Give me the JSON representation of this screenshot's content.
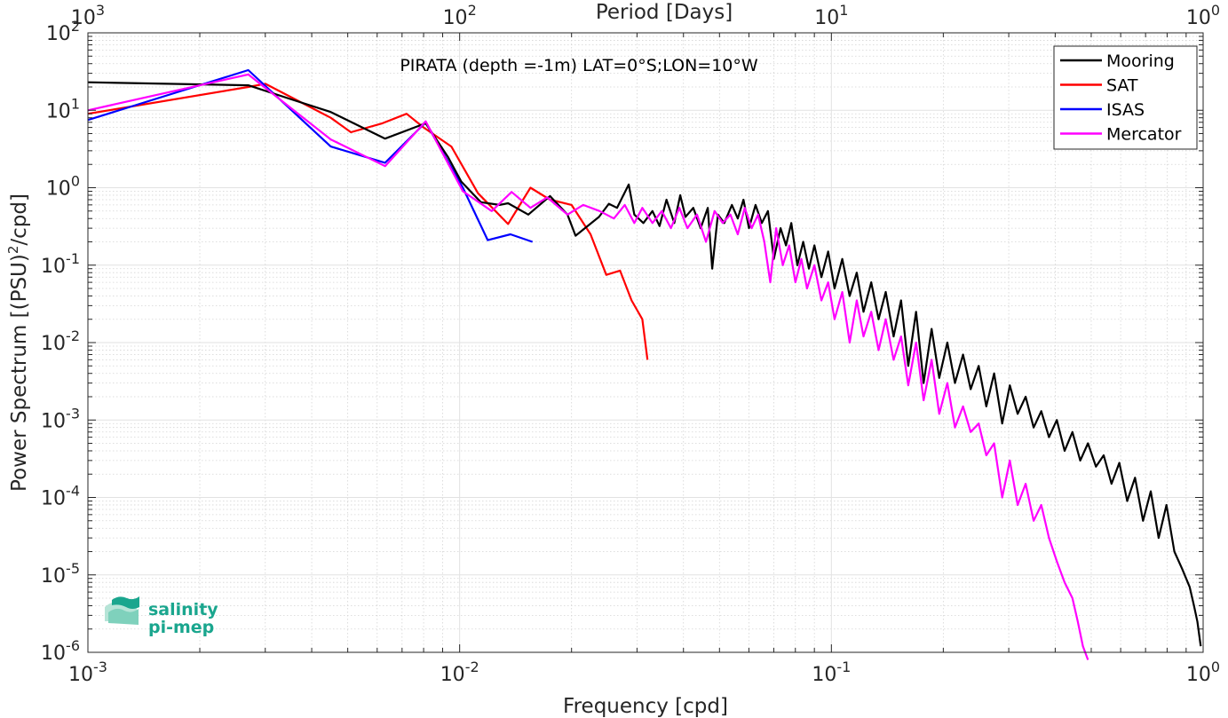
{
  "chart_data": {
    "type": "line",
    "title": "PIRATA (depth =-1m) LAT=0°S;LON=10°W",
    "xlabel": "Frequency [cpd]",
    "ylabel": "Power Spectrum [(PSU)^2/cpd]",
    "ylabel_base": "Power Spectrum [(PSU)",
    "ylabel_sup": "2",
    "ylabel_tail": "/cpd]",
    "x2label": "Period [Days]",
    "xscale": "log",
    "yscale": "log",
    "xlim": [
      0.001,
      1
    ],
    "ylim": [
      1e-06,
      100
    ],
    "grid": true,
    "legend_position": "top-right",
    "x_ticks": [
      {
        "value": 0.001,
        "base": "10",
        "exp": "-3"
      },
      {
        "value": 0.01,
        "base": "10",
        "exp": "-2"
      },
      {
        "value": 0.1,
        "base": "10",
        "exp": "-1"
      },
      {
        "value": 1,
        "base": "10",
        "exp": "0"
      }
    ],
    "x2_ticks": [
      {
        "value": 1000,
        "base": "10",
        "exp": "3"
      },
      {
        "value": 100,
        "base": "10",
        "exp": "2"
      },
      {
        "value": 10,
        "base": "10",
        "exp": "1"
      },
      {
        "value": 1,
        "base": "10",
        "exp": "0"
      }
    ],
    "y_ticks": [
      {
        "value": 100,
        "base": "10",
        "exp": "2"
      },
      {
        "value": 10,
        "base": "10",
        "exp": "1"
      },
      {
        "value": 1,
        "base": "10",
        "exp": "0"
      },
      {
        "value": 0.1,
        "base": "10",
        "exp": "-1"
      },
      {
        "value": 0.01,
        "base": "10",
        "exp": "-2"
      },
      {
        "value": 0.001,
        "base": "10",
        "exp": "-3"
      },
      {
        "value": 0.0001,
        "base": "10",
        "exp": "-4"
      },
      {
        "value": 1e-05,
        "base": "10",
        "exp": "-5"
      },
      {
        "value": 1e-06,
        "base": "10",
        "exp": "-6"
      }
    ],
    "series": [
      {
        "name": "Mooring",
        "color": "#000000",
        "x": [
          0.001,
          0.0027,
          0.0035,
          0.0045,
          0.0063,
          0.0081,
          0.0093,
          0.0101,
          0.0114,
          0.0128,
          0.0135,
          0.0153,
          0.0175,
          0.0195,
          0.0205,
          0.0237,
          0.0252,
          0.0265,
          0.0285,
          0.0295,
          0.0312,
          0.033,
          0.0345,
          0.036,
          0.0378,
          0.0392,
          0.0405,
          0.0425,
          0.0445,
          0.0465,
          0.0478,
          0.0495,
          0.0515,
          0.054,
          0.056,
          0.058,
          0.06,
          0.0625,
          0.065,
          0.0675,
          0.07,
          0.073,
          0.0755,
          0.078,
          0.081,
          0.084,
          0.087,
          0.09,
          0.094,
          0.098,
          0.102,
          0.107,
          0.112,
          0.117,
          0.122,
          0.128,
          0.134,
          0.14,
          0.147,
          0.154,
          0.161,
          0.169,
          0.177,
          0.186,
          0.195,
          0.205,
          0.215,
          0.226,
          0.237,
          0.249,
          0.261,
          0.274,
          0.288,
          0.302,
          0.317,
          0.333,
          0.35,
          0.367,
          0.385,
          0.404,
          0.424,
          0.445,
          0.467,
          0.49,
          0.515,
          0.54,
          0.567,
          0.595,
          0.625,
          0.656,
          0.689,
          0.723,
          0.759,
          0.797,
          0.837,
          0.878,
          0.92,
          0.945,
          0.965,
          0.985
        ],
        "values": [
          23,
          21,
          14,
          9.5,
          4.3,
          6.8,
          2.5,
          1.2,
          0.65,
          0.6,
          0.63,
          0.45,
          0.78,
          0.45,
          0.24,
          0.42,
          0.62,
          0.55,
          1.1,
          0.45,
          0.35,
          0.5,
          0.32,
          0.7,
          0.35,
          0.8,
          0.42,
          0.55,
          0.3,
          0.55,
          0.09,
          0.45,
          0.35,
          0.6,
          0.4,
          0.7,
          0.3,
          0.6,
          0.35,
          0.5,
          0.12,
          0.3,
          0.18,
          0.35,
          0.1,
          0.2,
          0.09,
          0.18,
          0.07,
          0.15,
          0.05,
          0.12,
          0.04,
          0.08,
          0.025,
          0.06,
          0.02,
          0.045,
          0.012,
          0.035,
          0.005,
          0.025,
          0.003,
          0.015,
          0.0035,
          0.01,
          0.003,
          0.007,
          0.0025,
          0.005,
          0.0015,
          0.004,
          0.0009,
          0.0028,
          0.0012,
          0.002,
          0.0008,
          0.0013,
          0.0006,
          0.001,
          0.0004,
          0.0007,
          0.0003,
          0.0005,
          0.00025,
          0.00035,
          0.00015,
          0.00028,
          9e-05,
          0.00018,
          5e-05,
          0.00012,
          3e-05,
          8e-05,
          2e-05,
          1.2e-05,
          7e-06,
          4e-06,
          2.5e-06,
          1.2e-06
        ]
      },
      {
        "name": "SAT",
        "color": "#ff0000",
        "x": [
          0.001,
          0.0027,
          0.003,
          0.0045,
          0.0051,
          0.0062,
          0.0072,
          0.008,
          0.0095,
          0.0112,
          0.0135,
          0.0155,
          0.0175,
          0.02,
          0.0225,
          0.0248,
          0.027,
          0.029,
          0.031,
          0.032
        ],
        "values": [
          9,
          20,
          22,
          8,
          5.2,
          6.8,
          9,
          6,
          3.4,
          0.85,
          0.34,
          1.0,
          0.7,
          0.6,
          0.25,
          0.075,
          0.085,
          0.035,
          0.02,
          0.006
        ]
      },
      {
        "name": "ISAS",
        "color": "#0000ff",
        "x": [
          0.001,
          0.0027,
          0.0045,
          0.0063,
          0.0081,
          0.0102,
          0.0119,
          0.0137,
          0.0157
        ],
        "values": [
          7.5,
          33,
          3.4,
          2.1,
          7,
          1.0,
          0.21,
          0.25,
          0.2
        ]
      },
      {
        "name": "Mercator",
        "color": "#ff00ff",
        "x": [
          0.001,
          0.0027,
          0.0045,
          0.0063,
          0.0081,
          0.0102,
          0.0122,
          0.0138,
          0.0155,
          0.0172,
          0.0195,
          0.0215,
          0.0238,
          0.026,
          0.0278,
          0.0295,
          0.031,
          0.033,
          0.035,
          0.037,
          0.039,
          0.041,
          0.0435,
          0.046,
          0.0485,
          0.051,
          0.0535,
          0.056,
          0.0585,
          0.061,
          0.0635,
          0.066,
          0.0685,
          0.071,
          0.074,
          0.077,
          0.08,
          0.083,
          0.086,
          0.09,
          0.094,
          0.098,
          0.102,
          0.107,
          0.112,
          0.117,
          0.122,
          0.128,
          0.134,
          0.14,
          0.147,
          0.154,
          0.161,
          0.169,
          0.177,
          0.186,
          0.195,
          0.205,
          0.215,
          0.226,
          0.237,
          0.249,
          0.261,
          0.274,
          0.288,
          0.302,
          0.317,
          0.333,
          0.35,
          0.367,
          0.385,
          0.404,
          0.424,
          0.445,
          0.46,
          0.475,
          0.49
        ],
        "values": [
          10,
          29,
          4.2,
          1.9,
          7.2,
          0.9,
          0.5,
          0.88,
          0.55,
          0.75,
          0.45,
          0.6,
          0.5,
          0.4,
          0.6,
          0.35,
          0.55,
          0.35,
          0.5,
          0.3,
          0.55,
          0.3,
          0.45,
          0.2,
          0.5,
          0.35,
          0.45,
          0.25,
          0.55,
          0.3,
          0.45,
          0.2,
          0.06,
          0.3,
          0.1,
          0.18,
          0.06,
          0.12,
          0.05,
          0.1,
          0.035,
          0.06,
          0.02,
          0.045,
          0.01,
          0.035,
          0.012,
          0.025,
          0.008,
          0.02,
          0.006,
          0.012,
          0.0028,
          0.01,
          0.0018,
          0.006,
          0.0012,
          0.003,
          0.0008,
          0.0015,
          0.0007,
          0.0009,
          0.00035,
          0.0005,
          0.0001,
          0.0003,
          8e-05,
          0.00015,
          5e-05,
          8e-05,
          3e-05,
          1.5e-05,
          8e-06,
          5e-06,
          2.5e-06,
          1.2e-06,
          8e-07
        ]
      }
    ]
  },
  "logo": {
    "line1": "salinity",
    "line2": "pi-mep",
    "color": "#1aa68e"
  }
}
